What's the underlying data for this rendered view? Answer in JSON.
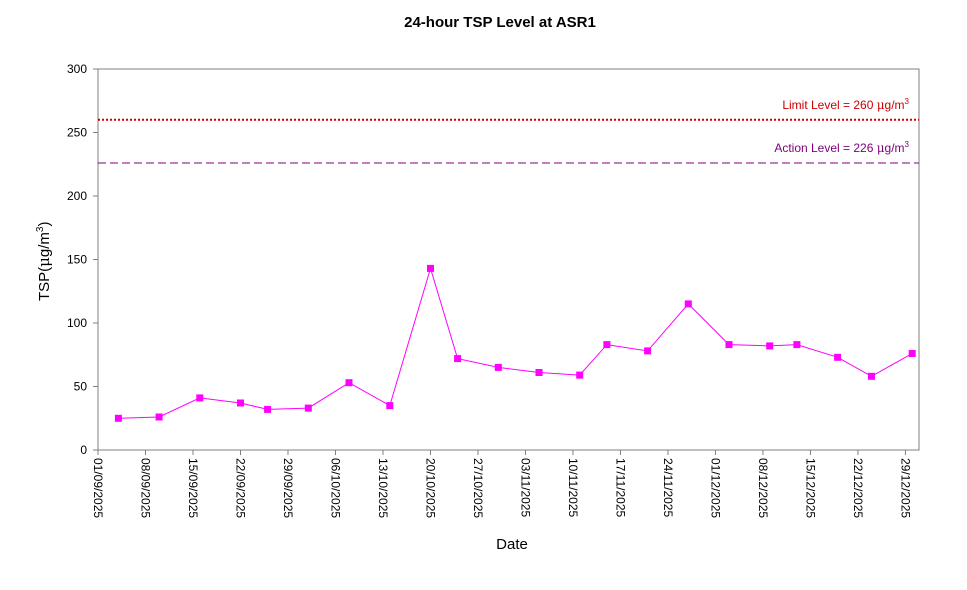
{
  "chart_data": {
    "type": "line",
    "title": "24-hour TSP Level at ASR1",
    "xlabel": "Date",
    "ylabel_parts": [
      "TSP(",
      "μ",
      "g/m",
      "3",
      ")"
    ],
    "ylim": [
      0,
      300
    ],
    "yticks": [
      0,
      50,
      100,
      150,
      200,
      250,
      300
    ],
    "xlim": [
      "01/09/2025",
      "31/12/2025"
    ],
    "xtick_labels": [
      "01/09/2025",
      "08/09/2025",
      "15/09/2025",
      "22/09/2025",
      "29/09/2025",
      "06/10/2025",
      "13/10/2025",
      "20/10/2025",
      "27/10/2025",
      "03/11/2025",
      "10/11/2025",
      "17/11/2025",
      "24/11/2025",
      "01/12/2025",
      "08/12/2025",
      "15/12/2025",
      "22/12/2025",
      "29/12/2025"
    ],
    "grid": false,
    "series": [
      {
        "color": "#ff00ff",
        "marker": "square",
        "points": [
          {
            "x": "04/09/2025",
            "y": 25
          },
          {
            "x": "10/09/2025",
            "y": 26
          },
          {
            "x": "16/09/2025",
            "y": 41
          },
          {
            "x": "22/09/2025",
            "y": 37
          },
          {
            "x": "26/09/2025",
            "y": 32
          },
          {
            "x": "02/10/2025",
            "y": 33
          },
          {
            "x": "08/10/2025",
            "y": 53
          },
          {
            "x": "14/10/2025",
            "y": 35
          },
          {
            "x": "20/10/2025",
            "y": 143
          },
          {
            "x": "24/10/2025",
            "y": 72
          },
          {
            "x": "30/10/2025",
            "y": 65
          },
          {
            "x": "05/11/2025",
            "y": 61
          },
          {
            "x": "11/11/2025",
            "y": 59
          },
          {
            "x": "15/11/2025",
            "y": 83
          },
          {
            "x": "21/11/2025",
            "y": 78
          },
          {
            "x": "27/11/2025",
            "y": 115
          },
          {
            "x": "03/12/2025",
            "y": 83
          },
          {
            "x": "09/12/2025",
            "y": 82
          },
          {
            "x": "13/12/2025",
            "y": 83
          },
          {
            "x": "19/12/2025",
            "y": 73
          },
          {
            "x": "24/12/2025",
            "y": 58
          },
          {
            "x": "30/12/2025",
            "y": 76
          }
        ]
      }
    ],
    "reference_lines": [
      {
        "value": 260,
        "label_prefix": "Limit Level  = 260 ",
        "label_unit_mu": "μ",
        "label_unit_rest": "g/m",
        "label_unit_sup": "3",
        "color": "#cc0000",
        "style": "dotted"
      },
      {
        "value": 226,
        "label_prefix": "Action Level  = 226 ",
        "label_unit_mu": "μ",
        "label_unit_rest": "g/m",
        "label_unit_sup": "3",
        "color": "#800080",
        "style": "dashed"
      }
    ]
  }
}
